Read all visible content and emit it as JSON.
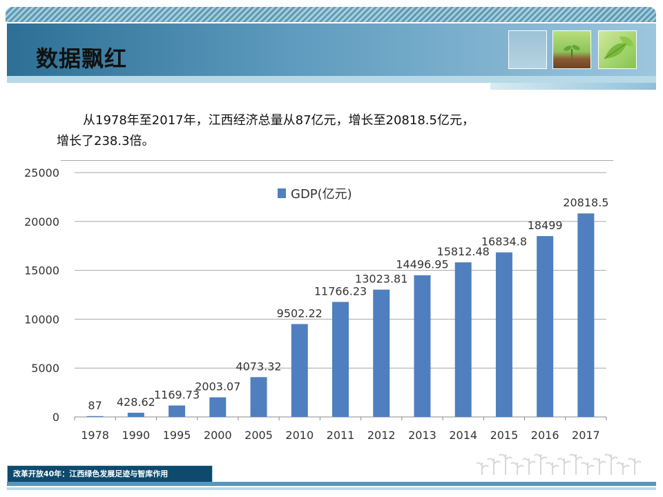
{
  "header": {
    "title": "数据飘红"
  },
  "intro": {
    "line1": "从1978年至2017年，江西经济总量从87亿元，增长至20818.5亿元，",
    "line2": "增长了238.3倍。"
  },
  "footer": {
    "label": "改革开放40年：江西绿色发展足迹与智库作用"
  },
  "colors": {
    "bar": "#4f7fbe",
    "band": "#2d6f95"
  },
  "icons": [
    "picture-plain-thumbnail",
    "sprout-thumbnail",
    "leaf-thumbnail",
    "sprout-row-decoration"
  ],
  "chart_data": {
    "type": "bar",
    "categories": [
      "1978",
      "1990",
      "1995",
      "2000",
      "2005",
      "2010",
      "2011",
      "2012",
      "2013",
      "2014",
      "2015",
      "2016",
      "2017"
    ],
    "series": [
      {
        "name": "GDP(亿元)",
        "values": [
          87,
          428.62,
          1169.73,
          2003.07,
          4073.32,
          9502.22,
          11766.23,
          13023.81,
          14496.95,
          15812.48,
          16834.8,
          18499,
          20818.5
        ],
        "labels": [
          "87",
          "428.62",
          "1169.73",
          "2003.07",
          "4073.32",
          "9502.22",
          "11766.23",
          "13023.81",
          "14496.95",
          "15812.48",
          "16834.8",
          "18499",
          "20818.5"
        ]
      }
    ],
    "yticks": [
      "0",
      "5000",
      "10000",
      "15000",
      "20000",
      "25000"
    ],
    "ylim": [
      0,
      25000
    ],
    "grid": true,
    "legend": "top-center"
  }
}
